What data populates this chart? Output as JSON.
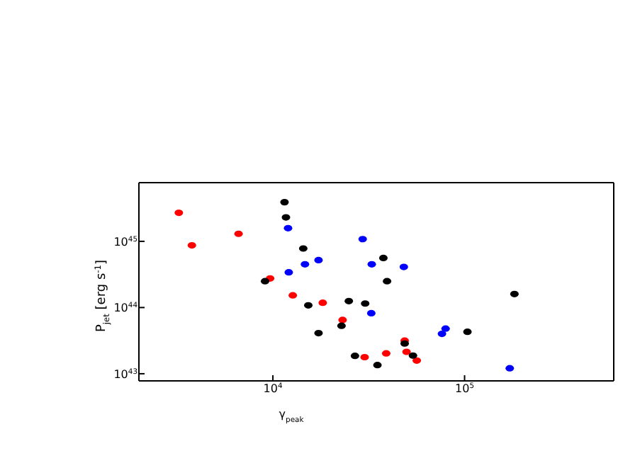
{
  "chart_data": {
    "type": "scatter",
    "xlabel": "γ$_{peak}$",
    "ylabel": "P$_{jet}$ [erg s$^{-1}$]",
    "log": "xy",
    "marker": "circle",
    "xlim": [
      2000,
      600000
    ],
    "ylim": [
      7.8e+42,
      7.7e+45
    ],
    "xticks": [
      {
        "value": 10000,
        "label": "10$^{4}$"
      },
      {
        "value": 100000,
        "label": "10$^{5}$"
      }
    ],
    "yticks": [
      {
        "value": 1e+43,
        "label": "10$^{43}$"
      },
      {
        "value": 1e+44,
        "label": "10$^{44}$"
      },
      {
        "value": 1e+45,
        "label": "10$^{45}$"
      }
    ],
    "series": [
      {
        "color": "#ff0000",
        "x": [
          3230,
          3780,
          6620,
          9670,
          12700,
          18200,
          23100,
          30100,
          39000,
          48700,
          49800,
          56300
        ],
        "values": [
          2.7e+45,
          8.7e+44,
          1.3e+45,
          2.75e+44,
          1.53e+44,
          1.18e+44,
          6.5e+43,
          1.78e+43,
          2.03e+43,
          3.16e+43,
          2.14e+43,
          1.58e+43
        ]
      },
      {
        "color": "#0000ff",
        "x": [
          12000,
          12100,
          14700,
          17300,
          29400,
          32800,
          48200,
          32600,
          79600,
          76200,
          172000
        ],
        "values": [
          1.58e+45,
          3.4e+44,
          4.5e+44,
          5.2e+44,
          1.08e+45,
          4.5e+44,
          4.1e+44,
          8.2e+43,
          4.8e+43,
          4e+43,
          1.21e+43
        ]
      },
      {
        "color": "#000000",
        "x": [
          11500,
          11700,
          14400,
          9100,
          15300,
          17300,
          37700,
          39400,
          24900,
          30300,
          22800,
          26800,
          35100,
          48700,
          53800,
          103500,
          182000
        ],
        "values": [
          3.9e+45,
          2.3e+45,
          7.8e+44,
          2.5e+44,
          1.08e+44,
          4.1e+43,
          5.6e+44,
          2.5e+44,
          1.25e+44,
          1.15e+44,
          5.3e+43,
          1.86e+43,
          1.35e+43,
          2.86e+43,
          1.88e+43,
          4.3e+43,
          1.6e+44
        ]
      }
    ]
  }
}
